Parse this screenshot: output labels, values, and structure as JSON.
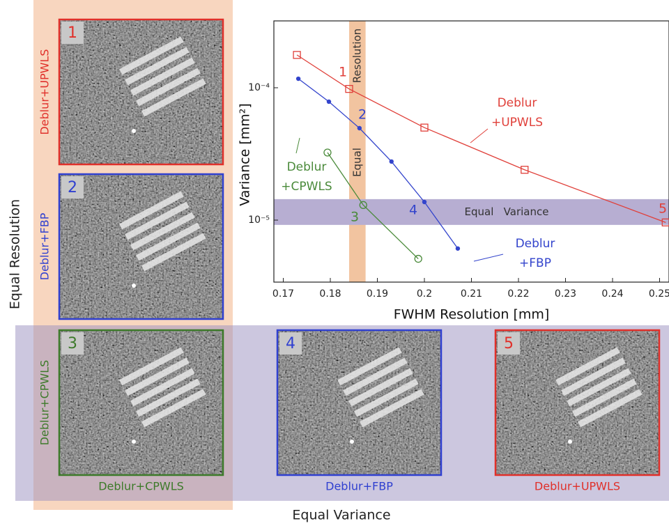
{
  "labels": {
    "equal_resolution": "Equal Resolution",
    "equal_variance": "Equal Variance"
  },
  "panels": [
    {
      "number": "1",
      "color": "#e0302a",
      "side_label": "Deblur+UPWLS"
    },
    {
      "number": "2",
      "color": "#3040d0",
      "side_label": "Deblur+FBP"
    },
    {
      "number": "3",
      "color": "#3d7a2a",
      "side_label": "Deblur+CPWLS",
      "bottom_label": "Deblur+CPWLS"
    },
    {
      "number": "4",
      "color": "#3040d0",
      "bottom_label": "Deblur+FBP"
    },
    {
      "number": "5",
      "color": "#e0302a",
      "bottom_label": "Deblur+UPWLS"
    }
  ],
  "chart_data": {
    "type": "line",
    "x_label": "FWHM Resolution [mm]",
    "y_label": "Variance [mm²]",
    "xlim": [
      0.168,
      0.252
    ],
    "ylim": [
      3.4e-06,
      0.00032
    ],
    "y_log": true,
    "xticks": [
      0.17,
      0.18,
      0.19,
      0.2,
      0.21,
      0.22,
      0.23,
      0.24,
      0.25
    ],
    "yticks": [
      {
        "value": 1e-05,
        "label": "10⁻⁵"
      },
      {
        "value": 0.0001,
        "label": "10⁻⁴"
      }
    ],
    "series": [
      {
        "name": "Deblur\n+UPWLS",
        "color": "#e0403a",
        "marker": "square",
        "x": [
          0.1729,
          0.184,
          0.2,
          0.2213,
          0.2513
        ],
        "values": [
          0.000177,
          9.8e-05,
          5e-05,
          2.4e-05,
          9.6e-06
        ]
      },
      {
        "name": "Deblur\n+FBP",
        "color": "#3344cc",
        "marker": "dot",
        "x": [
          0.1732,
          0.1797,
          0.1862,
          0.193,
          0.2,
          0.2071
        ],
        "values": [
          0.000117,
          7.85e-05,
          4.95e-05,
          2.77e-05,
          1.37e-05,
          6.1e-06
        ]
      },
      {
        "name": "Deblur\n+CPWLS",
        "color": "#4a8a3a",
        "marker": "circle",
        "x": [
          0.1794,
          0.187,
          0.1987
        ],
        "values": [
          3.24e-05,
          1.3e-05,
          5.1e-06
        ]
      }
    ],
    "equal_resolution": {
      "labels": [
        "Resolution",
        "Equal"
      ],
      "range": [
        0.184,
        0.1875
      ]
    },
    "equal_variance": {
      "label": "Equal   Variance",
      "range": [
        9.2e-06,
        1.44e-05
      ]
    },
    "annotations": [
      {
        "text": "1",
        "color": "#e0403a"
      },
      {
        "text": "2",
        "color": "#3344cc"
      },
      {
        "text": "3",
        "color": "#4a8a3a"
      },
      {
        "text": "4",
        "color": "#3344cc"
      },
      {
        "text": "5",
        "color": "#e0403a"
      }
    ]
  }
}
